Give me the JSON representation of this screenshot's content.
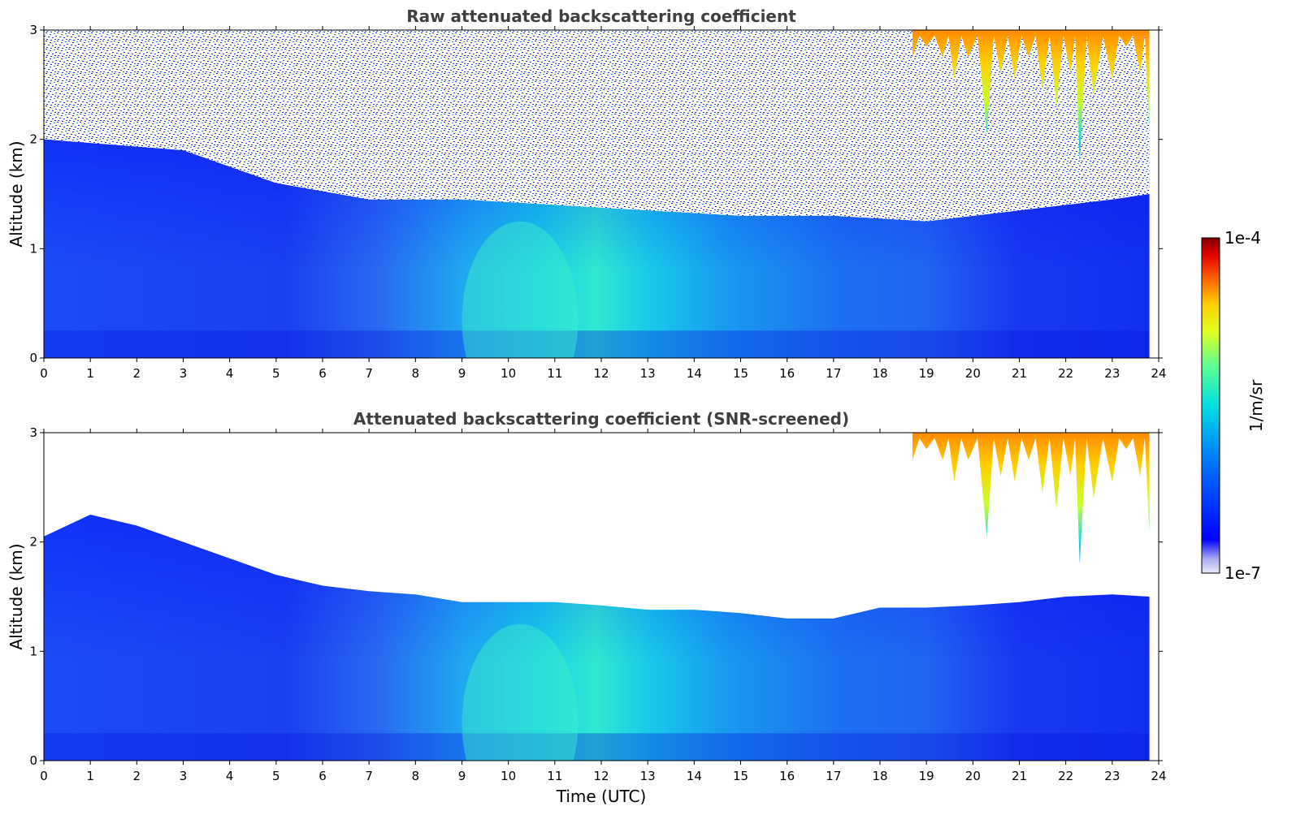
{
  "chart_data": [
    {
      "type": "heatmap",
      "title": "Raw attenuated backscattering coefficient",
      "xlabel": "",
      "ylabel": "Altitude (km)",
      "xlim": [
        0,
        24
      ],
      "ylim": [
        0,
        3
      ],
      "x_ticks": [
        "0",
        "1",
        "2",
        "3",
        "4",
        "5",
        "6",
        "7",
        "8",
        "9",
        "10",
        "11",
        "12",
        "13",
        "14",
        "15",
        "16",
        "17",
        "18",
        "19",
        "20",
        "21",
        "22",
        "23",
        "24"
      ],
      "y_ticks": [
        "0",
        "1",
        "2",
        "3"
      ],
      "screened": false,
      "data_end_hour": 23.8,
      "aerosol_layer_top_km": [
        [
          0,
          2.0
        ],
        [
          3,
          1.9
        ],
        [
          5,
          1.6
        ],
        [
          7,
          1.45
        ],
        [
          9,
          1.45
        ],
        [
          11,
          1.4
        ],
        [
          13,
          1.35
        ],
        [
          15,
          1.3
        ],
        [
          17,
          1.3
        ],
        [
          19,
          1.25
        ],
        [
          21,
          1.35
        ],
        [
          23,
          1.45
        ],
        [
          23.8,
          1.5
        ]
      ],
      "high_backscatter_band": {
        "x": [
          9,
          11.5
        ],
        "y": [
          0,
          1.4
        ],
        "level": "cyan-green"
      },
      "cloud_regions": [
        {
          "x": [
            18.7,
            23.8
          ],
          "y": [
            1.8,
            3.0
          ],
          "level": "yellow-red"
        }
      ]
    },
    {
      "type": "heatmap",
      "title": "Attenuated backscattering coefficient (SNR-screened)",
      "xlabel": "Time (UTC)",
      "ylabel": "Altitude (km)",
      "xlim": [
        0,
        24
      ],
      "ylim": [
        0,
        3
      ],
      "x_ticks": [
        "0",
        "1",
        "2",
        "3",
        "4",
        "5",
        "6",
        "7",
        "8",
        "9",
        "10",
        "11",
        "12",
        "13",
        "14",
        "15",
        "16",
        "17",
        "18",
        "19",
        "20",
        "21",
        "22",
        "23",
        "24"
      ],
      "y_ticks": [
        "0",
        "1",
        "2",
        "3"
      ],
      "screened": true,
      "data_end_hour": 23.8,
      "aerosol_layer_top_km": [
        [
          0,
          2.05
        ],
        [
          1,
          2.25
        ],
        [
          2,
          2.15
        ],
        [
          3,
          2.0
        ],
        [
          4,
          1.85
        ],
        [
          5,
          1.7
        ],
        [
          6,
          1.6
        ],
        [
          7,
          1.55
        ],
        [
          8,
          1.52
        ],
        [
          9,
          1.45
        ],
        [
          10,
          1.45
        ],
        [
          11,
          1.45
        ],
        [
          12,
          1.42
        ],
        [
          13,
          1.38
        ],
        [
          14,
          1.38
        ],
        [
          15,
          1.35
        ],
        [
          16,
          1.3
        ],
        [
          17,
          1.3
        ],
        [
          18,
          1.4
        ],
        [
          19,
          1.4
        ],
        [
          20,
          1.42
        ],
        [
          21,
          1.45
        ],
        [
          22,
          1.5
        ],
        [
          23,
          1.52
        ],
        [
          23.8,
          1.5
        ]
      ],
      "high_backscatter_band": {
        "x": [
          9,
          11.5
        ],
        "y": [
          0,
          1.4
        ],
        "level": "cyan-green"
      },
      "cloud_regions": [
        {
          "x": [
            18.7,
            23.8
          ],
          "y": [
            1.8,
            3.0
          ],
          "level": "yellow-red"
        }
      ]
    }
  ],
  "colorbar": {
    "label": "1/m/sr",
    "max_label": "1e-4",
    "min_label": "1e-7",
    "scale": "log",
    "range": [
      1e-07,
      0.0001
    ],
    "colormap": "jet"
  }
}
